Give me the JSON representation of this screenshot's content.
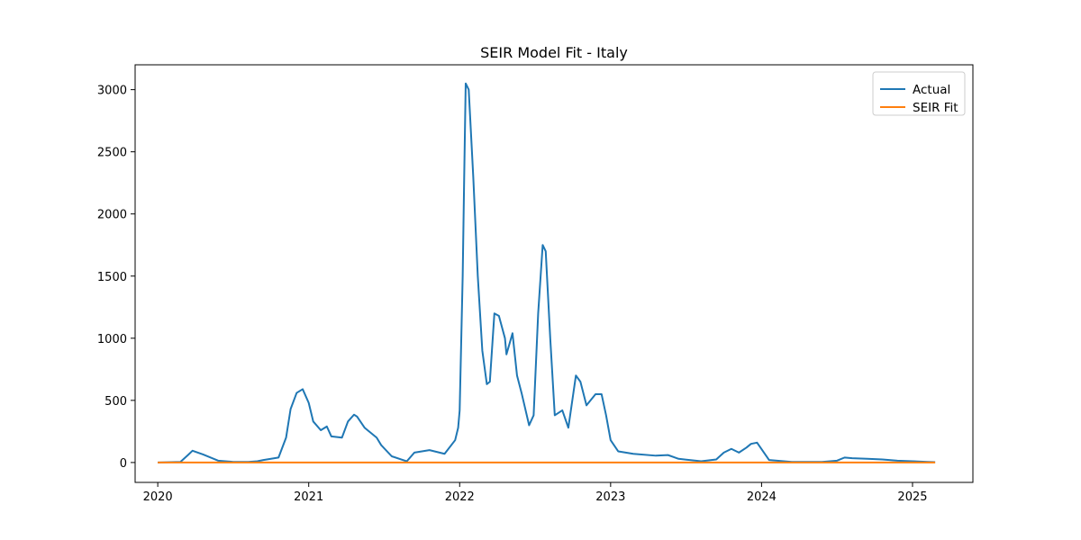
{
  "chart_data": {
    "type": "line",
    "title": "SEIR Model Fit - Italy",
    "xlabel": "",
    "ylabel": "",
    "xlim": [
      2019.85,
      2025.4
    ],
    "ylim": [
      -160,
      3200
    ],
    "xticks": [
      2020,
      2021,
      2022,
      2023,
      2024,
      2025
    ],
    "xtick_labels": [
      "2020",
      "2021",
      "2022",
      "2023",
      "2024",
      "2025"
    ],
    "yticks": [
      0,
      500,
      1000,
      1500,
      2000,
      2500,
      3000
    ],
    "ytick_labels": [
      "0",
      "500",
      "1000",
      "1500",
      "2000",
      "2500",
      "3000"
    ],
    "legend_position": "top-right",
    "grid": false,
    "series": [
      {
        "name": "Actual",
        "color": "#1f77b4",
        "x": [
          2020.0,
          2020.15,
          2020.2,
          2020.23,
          2020.3,
          2020.4,
          2020.5,
          2020.6,
          2020.66,
          2020.7,
          2020.8,
          2020.85,
          2020.88,
          2020.92,
          2020.96,
          2021.0,
          2021.03,
          2021.08,
          2021.12,
          2021.15,
          2021.22,
          2021.26,
          2021.3,
          2021.32,
          2021.37,
          2021.4,
          2021.45,
          2021.48,
          2021.55,
          2021.65,
          2021.7,
          2021.8,
          2021.9,
          2021.97,
          2021.99,
          2022.0,
          2022.02,
          2022.03,
          2022.04,
          2022.06,
          2022.09,
          2022.12,
          2022.15,
          2022.18,
          2022.2,
          2022.23,
          2022.26,
          2022.3,
          2022.31,
          2022.35,
          2022.38,
          2022.41,
          2022.46,
          2022.49,
          2022.52,
          2022.55,
          2022.57,
          2022.6,
          2022.63,
          2022.68,
          2022.72,
          2022.77,
          2022.8,
          2022.84,
          2022.9,
          2022.94,
          2022.97,
          2023.0,
          2023.05,
          2023.15,
          2023.3,
          2023.38,
          2023.45,
          2023.6,
          2023.7,
          2023.75,
          2023.8,
          2023.85,
          2023.9,
          2023.93,
          2023.97,
          2024.05,
          2024.2,
          2024.4,
          2024.5,
          2024.55,
          2024.6,
          2024.7,
          2024.8,
          2024.9,
          2025.0,
          2025.1,
          2025.15
        ],
        "values": [
          0,
          5,
          60,
          95,
          65,
          15,
          5,
          5,
          10,
          20,
          40,
          200,
          430,
          560,
          590,
          480,
          330,
          260,
          290,
          210,
          200,
          330,
          385,
          370,
          280,
          250,
          200,
          140,
          50,
          10,
          80,
          100,
          70,
          180,
          280,
          420,
          1500,
          2300,
          3050,
          3000,
          2300,
          1500,
          900,
          630,
          650,
          1200,
          1180,
          1000,
          870,
          1040,
          700,
          560,
          300,
          380,
          1200,
          1750,
          1700,
          1000,
          380,
          420,
          280,
          700,
          650,
          460,
          550,
          550,
          380,
          180,
          90,
          70,
          55,
          60,
          30,
          10,
          25,
          80,
          110,
          80,
          120,
          150,
          160,
          20,
          5,
          5,
          15,
          40,
          35,
          30,
          25,
          15,
          10,
          5,
          3
        ]
      },
      {
        "name": "SEIR Fit",
        "color": "#ff7f0e",
        "x": [
          2020.0,
          2025.15
        ],
        "values": [
          0,
          0
        ]
      }
    ]
  }
}
